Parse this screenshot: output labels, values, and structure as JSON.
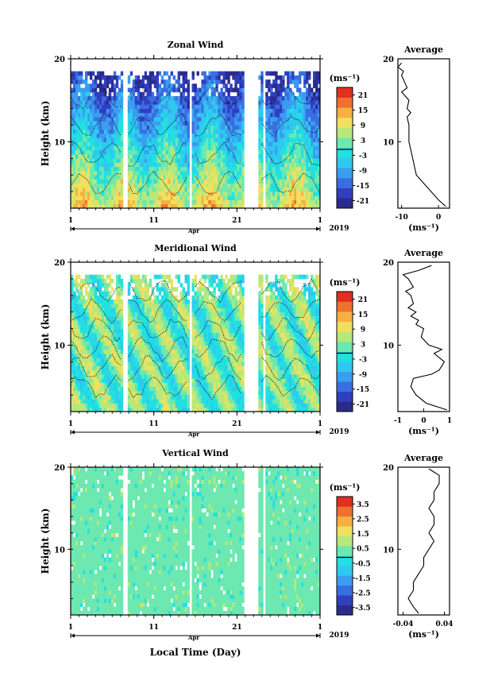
{
  "xaxis": {
    "ticks": [
      "1",
      "11",
      "21",
      "1"
    ],
    "month": "Apr",
    "year": "2019",
    "label": "Local Time (Day)"
  },
  "colorbar_unit": "(ms⁻¹)",
  "avg_title": "Average",
  "avg_unit": "(ms⁻¹)",
  "data_gaps_days": [
    [
      7.3,
      7.9
    ],
    [
      14.6,
      14.8
    ],
    [
      15.4,
      15.6
    ],
    [
      22.0,
      23.5
    ],
    [
      24.1,
      24.4
    ]
  ],
  "palette": [
    "#2b2b8c",
    "#2f3fbf",
    "#3a6ee0",
    "#3a9ef0",
    "#2fc8f0",
    "#22e0e0",
    "#6ce8b0",
    "#b8e87a",
    "#f0e060",
    "#f8b040",
    "#f07030",
    "#e03020"
  ],
  "chart_data": [
    {
      "type": "heatmap",
      "title": "Zonal Wind",
      "ylabel": "Height (km)",
      "yticks": [
        "20",
        "10"
      ],
      "ylim": [
        2,
        20
      ],
      "xlim": [
        1,
        31
      ],
      "colorbar_ticks": [
        "21",
        "15",
        "9",
        "3",
        "-3",
        "-9",
        "-15",
        "-21"
      ],
      "colorbar_range": [
        -24,
        24
      ],
      "profile": {
        "xticks": [
          "-10",
          "0"
        ],
        "xlim": [
          -11,
          3
        ],
        "heights": [
          2.2,
          3,
          4,
          5,
          6,
          7,
          8,
          9,
          10,
          11,
          12,
          13,
          13.5,
          14,
          15,
          15.5,
          16,
          16.5,
          17,
          17.5,
          18,
          18.5,
          19,
          19.5
        ],
        "values": [
          2,
          0,
          -2,
          -4,
          -6,
          -6.5,
          -7,
          -7.5,
          -8,
          -8,
          -8,
          -8.5,
          -7.5,
          -8.5,
          -8,
          -9,
          -10,
          -8.5,
          -9,
          -9.5,
          -10,
          -9.5,
          -11,
          -10
        ]
      }
    },
    {
      "type": "heatmap",
      "title": "Meridional Wind",
      "ylabel": "Height (km)",
      "yticks": [
        "20",
        "10"
      ],
      "ylim": [
        2,
        20
      ],
      "xlim": [
        1,
        31
      ],
      "colorbar_ticks": [
        "21",
        "15",
        "9",
        "3",
        "-3",
        "-9",
        "-15",
        "-21"
      ],
      "colorbar_range": [
        -24,
        24
      ],
      "profile": {
        "xticks": [
          "-1",
          "0",
          "1"
        ],
        "xlim": [
          -1,
          1
        ],
        "heights": [
          2.2,
          3,
          4,
          5,
          6,
          6.5,
          7,
          8,
          9,
          9.5,
          10,
          11,
          12,
          12.5,
          13,
          13.5,
          14,
          14.5,
          15,
          16,
          16.5,
          17,
          18,
          18.5,
          19,
          19.6
        ],
        "values": [
          0.9,
          0.1,
          -0.3,
          -0.5,
          -0.4,
          0.3,
          0.6,
          0.8,
          0.4,
          0.7,
          0.2,
          -0.1,
          0.0,
          -0.3,
          -0.2,
          -0.5,
          -0.3,
          -0.6,
          -0.4,
          -0.5,
          -0.7,
          -0.4,
          -0.6,
          -0.8,
          -0.2,
          0.3
        ]
      }
    },
    {
      "type": "heatmap",
      "title": "Vertical Wind",
      "ylabel": "Height (km)",
      "yticks": [
        "20",
        "10"
      ],
      "ylim": [
        2,
        20
      ],
      "xlim": [
        1,
        31
      ],
      "colorbar_ticks": [
        "3.5",
        "2.5",
        "1.5",
        "0.5",
        "-0.5",
        "-1.5",
        "-2.5",
        "-3.5"
      ],
      "colorbar_range": [
        -4,
        4
      ],
      "profile": {
        "xticks": [
          "-0.04",
          "0.04"
        ],
        "xlim": [
          -0.05,
          0.05
        ],
        "heights": [
          2.2,
          3,
          4,
          5,
          6,
          7,
          8,
          9,
          10,
          11,
          12,
          13,
          14,
          15,
          16,
          17,
          18,
          19,
          19.8
        ],
        "values": [
          -0.01,
          -0.02,
          -0.03,
          -0.02,
          -0.02,
          -0.01,
          0.0,
          0.0,
          0.01,
          0.02,
          0.01,
          0.02,
          0.02,
          0.01,
          0.02,
          0.02,
          0.03,
          0.03,
          0.01
        ]
      }
    }
  ]
}
